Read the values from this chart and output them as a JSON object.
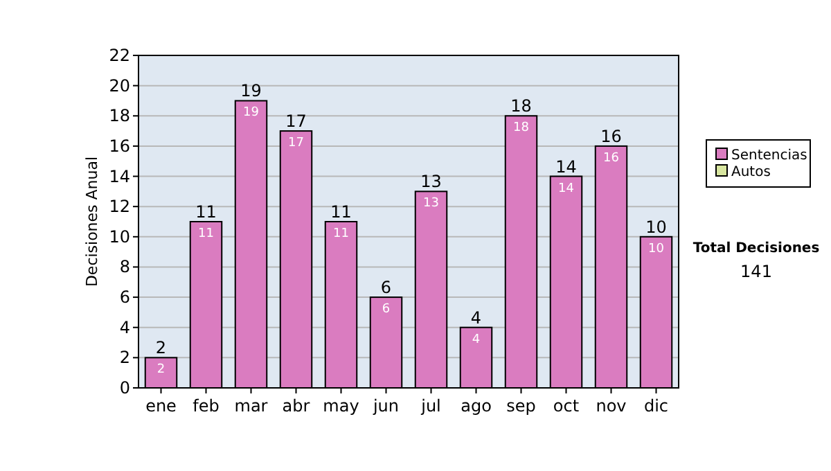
{
  "chart_data": {
    "type": "bar",
    "ylabel": "Decisiones Anual",
    "categories": [
      "ene",
      "feb",
      "mar",
      "abr",
      "may",
      "jun",
      "jul",
      "ago",
      "sep",
      "oct",
      "nov",
      "dic"
    ],
    "stacked": true,
    "series": [
      {
        "name": "Sentencias",
        "color": "#da7cc0",
        "values": [
          2,
          11,
          19,
          17,
          11,
          6,
          13,
          4,
          18,
          14,
          16,
          10
        ],
        "value_labels": [
          "2",
          "11",
          "19",
          "17",
          "11",
          "6",
          "13",
          "4",
          "18",
          "14",
          "16",
          "10"
        ]
      },
      {
        "name": "Autos",
        "color": "#d8e6a0",
        "values": [
          0,
          0,
          0,
          0,
          0,
          0,
          0,
          0,
          0,
          0,
          0,
          0
        ]
      }
    ],
    "totals": [
      "2",
      "11",
      "19",
      "17",
      "11",
      "6",
      "13",
      "4",
      "18",
      "14",
      "16",
      "10"
    ],
    "ylim": [
      0,
      22
    ],
    "yticks": [
      0,
      2,
      4,
      6,
      8,
      10,
      12,
      14,
      16,
      18,
      20,
      22
    ],
    "grid": "y",
    "legend": "right",
    "annotations": [
      "Total Decisiones",
      "141"
    ]
  }
}
